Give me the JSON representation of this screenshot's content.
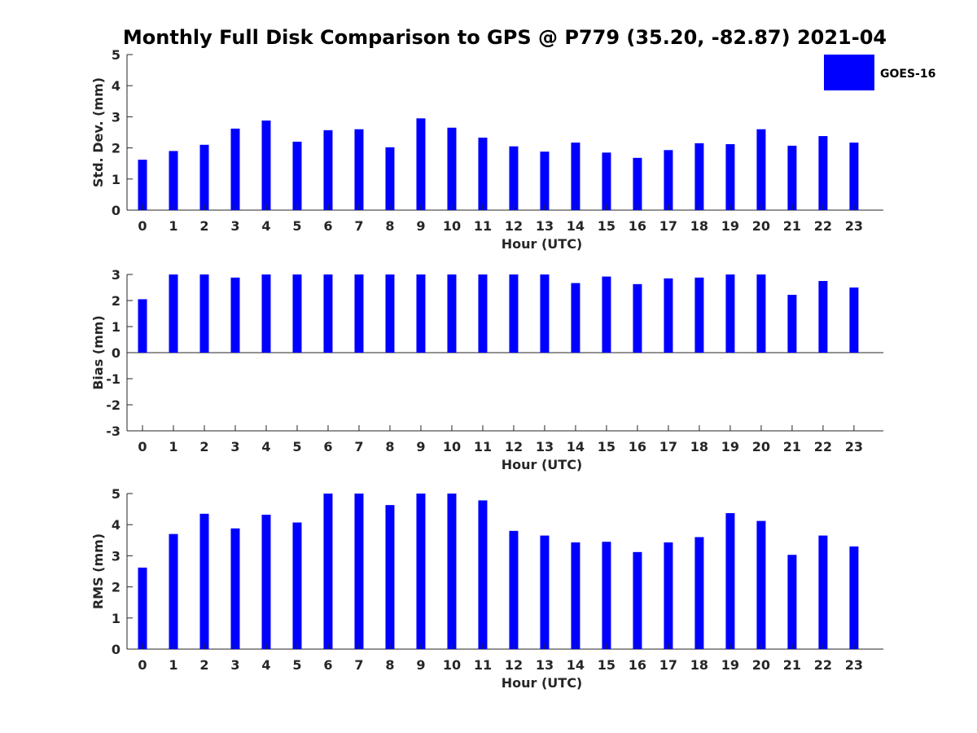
{
  "title": "Monthly Full Disk Comparison to GPS @ P779 (35.20, -82.87) 2021-04",
  "legend": {
    "label": "GOES-16",
    "color": "#0000ff"
  },
  "colors": {
    "bar": "#0000ff",
    "axis": "#262626",
    "text": "#262626"
  },
  "chart_data": [
    {
      "type": "bar",
      "series": [
        {
          "name": "GOES-16",
          "values": [
            1.62,
            1.9,
            2.1,
            2.62,
            2.88,
            2.2,
            2.57,
            2.6,
            2.02,
            2.95,
            2.65,
            2.33,
            2.05,
            1.88,
            2.17,
            1.85,
            1.68,
            1.93,
            2.15,
            2.12,
            2.6,
            2.07,
            2.38,
            2.17
          ]
        }
      ],
      "categories": [
        "0",
        "1",
        "2",
        "3",
        "4",
        "5",
        "6",
        "7",
        "8",
        "9",
        "10",
        "11",
        "12",
        "13",
        "14",
        "15",
        "16",
        "17",
        "18",
        "19",
        "20",
        "21",
        "22",
        "23"
      ],
      "xlabel": "Hour (UTC)",
      "ylabel": "Std. Dev. (mm)",
      "ylim": [
        0,
        5
      ],
      "yticks": [
        "0",
        "1",
        "2",
        "3",
        "4",
        "5"
      ],
      "grid": false,
      "legend_position": "top-right"
    },
    {
      "type": "bar",
      "series": [
        {
          "name": "GOES-16",
          "values": [
            2.05,
            3,
            3,
            2.88,
            3,
            3,
            3,
            3,
            3,
            3,
            3,
            3,
            3,
            3,
            2.67,
            2.92,
            2.63,
            2.85,
            2.88,
            3,
            3,
            2.22,
            2.75,
            2.5
          ]
        }
      ],
      "categories": [
        "0",
        "1",
        "2",
        "3",
        "4",
        "5",
        "6",
        "7",
        "8",
        "9",
        "10",
        "11",
        "12",
        "13",
        "14",
        "15",
        "16",
        "17",
        "18",
        "19",
        "20",
        "21",
        "22",
        "23"
      ],
      "xlabel": "Hour (UTC)",
      "ylabel": "Bias (mm)",
      "ylim": [
        -3,
        3
      ],
      "yticks": [
        "-3",
        "-2",
        "-1",
        "0",
        "1",
        "2",
        "3"
      ],
      "grid": false
    },
    {
      "type": "bar",
      "series": [
        {
          "name": "GOES-16",
          "values": [
            2.62,
            3.7,
            4.35,
            3.88,
            4.32,
            4.07,
            5,
            5,
            4.63,
            5,
            5,
            4.78,
            3.8,
            3.65,
            3.43,
            3.45,
            3.12,
            3.43,
            3.6,
            4.37,
            4.12,
            3.03,
            3.65,
            3.3
          ]
        }
      ],
      "categories": [
        "0",
        "1",
        "2",
        "3",
        "4",
        "5",
        "6",
        "7",
        "8",
        "9",
        "10",
        "11",
        "12",
        "13",
        "14",
        "15",
        "16",
        "17",
        "18",
        "19",
        "20",
        "21",
        "22",
        "23"
      ],
      "xlabel": "Hour (UTC)",
      "ylabel": "RMS (mm)",
      "ylim": [
        0,
        5
      ],
      "yticks": [
        "0",
        "1",
        "2",
        "3",
        "4",
        "5"
      ],
      "grid": false
    }
  ]
}
